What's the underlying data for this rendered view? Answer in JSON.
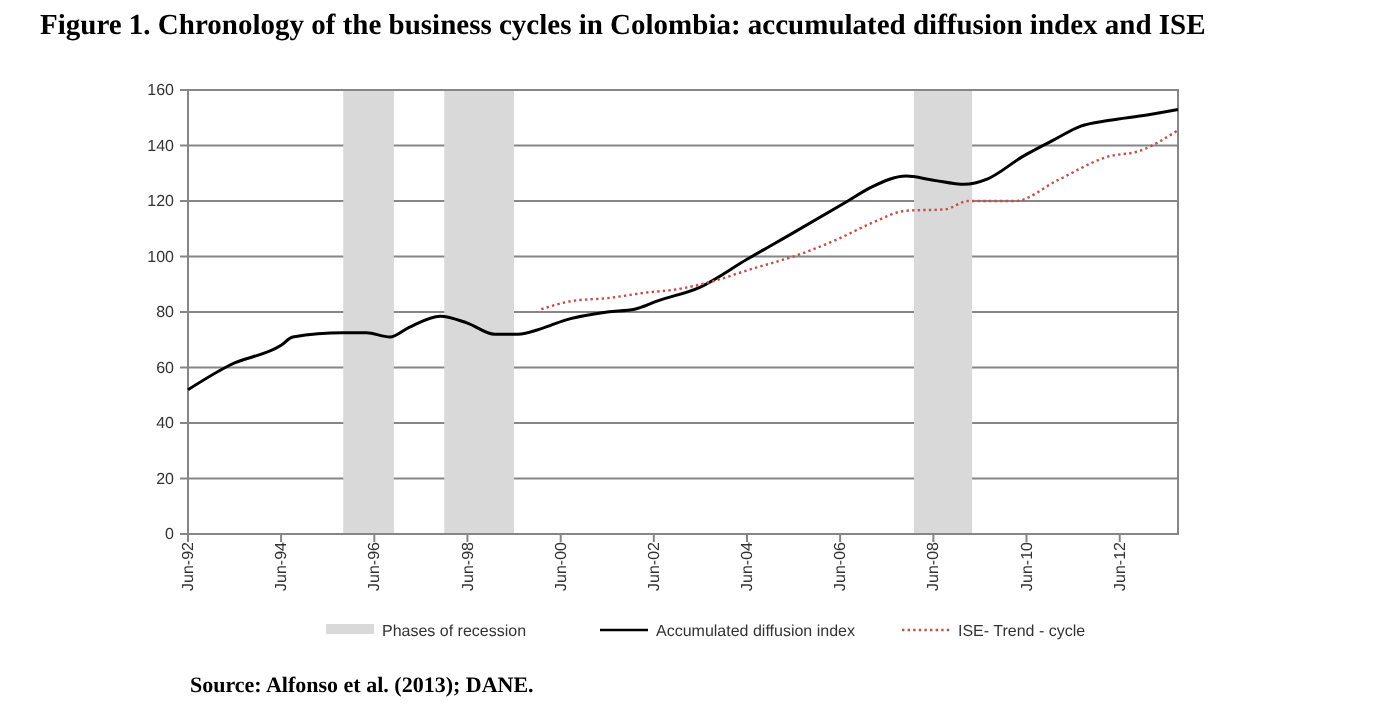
{
  "chart_data": {
    "type": "line",
    "title": "Figure 1. Chronology of the business cycles in Colombia: accumulated diffusion index and ISE",
    "xlim": [
      "1992-06",
      "2013-09"
    ],
    "xticks": [
      {
        "value": "1992-06",
        "label": "Jun-92"
      },
      {
        "value": "1994-06",
        "label": "Jun-94"
      },
      {
        "value": "1996-06",
        "label": "Jun-96"
      },
      {
        "value": "1998-06",
        "label": "Jun-98"
      },
      {
        "value": "2000-06",
        "label": "Jun-00"
      },
      {
        "value": "2002-06",
        "label": "Jun-02"
      },
      {
        "value": "2004-06",
        "label": "Jun-04"
      },
      {
        "value": "2006-06",
        "label": "Jun-06"
      },
      {
        "value": "2008-06",
        "label": "Jun-08"
      },
      {
        "value": "2010-06",
        "label": "Jun-10"
      },
      {
        "value": "2012-06",
        "label": "Jun-12"
      }
    ],
    "ylim": [
      0,
      160
    ],
    "yticks": [
      0,
      20,
      40,
      60,
      80,
      100,
      120,
      140,
      160
    ],
    "grid": "y",
    "legend": "bottom",
    "bands": [
      {
        "axis": "x",
        "from": "1995-10",
        "to": "1996-11",
        "label": "Phases of recession",
        "color": "#d9d9d9"
      },
      {
        "axis": "x",
        "from": "1997-12",
        "to": "1999-06",
        "color": "#d9d9d9"
      },
      {
        "axis": "x",
        "from": "2008-01",
        "to": "2009-04",
        "color": "#d9d9d9"
      }
    ],
    "series": [
      {
        "name": "Accumulated diffusion index",
        "color": "#000000",
        "line_style": "solid",
        "x": [
          "1992-06",
          "1993-05",
          "1994-06",
          "1994-09",
          "1995-10",
          "1996-04",
          "1996-10",
          "1997-03",
          "1997-11",
          "1998-06",
          "1999-01",
          "1999-07",
          "2000-01",
          "2000-07",
          "2001-06",
          "2002-01",
          "2002-07",
          "2003-06",
          "2004-06",
          "2005-04",
          "2006-08",
          "2007-02",
          "2007-11",
          "2008-06",
          "2009-02",
          "2009-08",
          "2010-05",
          "2011-01",
          "2011-08",
          "2012-03",
          "2013-01",
          "2013-09"
        ],
        "values": [
          52,
          61,
          68,
          71,
          72.5,
          72.5,
          71,
          74.5,
          78.5,
          76,
          72,
          72,
          74,
          77,
          80,
          81,
          84,
          89,
          99,
          107,
          120,
          125,
          129,
          127.5,
          126,
          128,
          136,
          142,
          147,
          149,
          151,
          153
        ]
      },
      {
        "name": "ISE- Trend - cycle",
        "color": "#c0504d",
        "line_style": "dotted",
        "x": [
          "2000-01",
          "2000-09",
          "2001-06",
          "2002-04",
          "2002-11",
          "2003-09",
          "2004-06",
          "2005-08",
          "2006-05",
          "2007-02",
          "2007-11",
          "2008-09",
          "2009-03",
          "2010-03",
          "2011-02",
          "2012-03",
          "2012-11",
          "2013-09"
        ],
        "values": [
          81,
          84,
          85,
          87,
          88,
          91,
          95,
          101,
          106,
          112,
          116.5,
          117,
          120,
          120,
          127.5,
          136,
          138,
          145.5
        ]
      }
    ],
    "annotations": [
      "Source: Alfonso et al. (2013); DANE."
    ]
  }
}
